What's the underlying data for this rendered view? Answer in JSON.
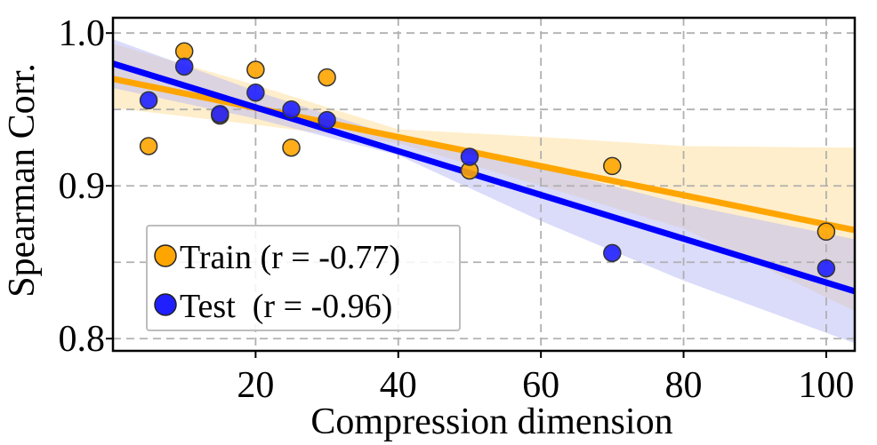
{
  "chart_data": {
    "type": "scatter",
    "xlabel": "Compression dimension",
    "ylabel": "Spearman Corr.",
    "xlim": [
      0,
      104
    ],
    "ylim": [
      0.792,
      1.01
    ],
    "x_ticks": [
      20,
      40,
      60,
      80,
      100
    ],
    "y_ticks": [
      0.8,
      0.9,
      1.0
    ],
    "x_tick_labels": [
      "20",
      "40",
      "60",
      "80",
      "100"
    ],
    "y_tick_labels": [
      "0.8",
      "0.9",
      "1.0"
    ],
    "grid": true,
    "legend_position": "bottom-left",
    "series": [
      {
        "name": "Train",
        "legend_label": "Train (r = -0.77)",
        "color": "#FFA500",
        "band_color": "#FFE0A0",
        "points": [
          {
            "x": 5,
            "y": 0.926
          },
          {
            "x": 10,
            "y": 0.988
          },
          {
            "x": 15,
            "y": 0.946
          },
          {
            "x": 20,
            "y": 0.976
          },
          {
            "x": 25,
            "y": 0.925
          },
          {
            "x": 30,
            "y": 0.971
          },
          {
            "x": 50,
            "y": 0.91
          },
          {
            "x": 70,
            "y": 0.913
          },
          {
            "x": 100,
            "y": 0.87
          }
        ],
        "fit": {
          "x": [
            0,
            104
          ],
          "y": [
            0.97,
            0.871
          ]
        },
        "ci": {
          "x": [
            0,
            20,
            40,
            60,
            80,
            104
          ],
          "lower": [
            0.951,
            0.94,
            0.928,
            0.9,
            0.872,
            0.818
          ],
          "upper": [
            0.993,
            0.966,
            0.937,
            0.932,
            0.926,
            0.925
          ]
        }
      },
      {
        "name": "Test",
        "legend_label": "Test  (r = -0.96)",
        "color": "#0000FF",
        "band_color": "#B8B8F5",
        "points": [
          {
            "x": 5,
            "y": 0.956
          },
          {
            "x": 10,
            "y": 0.978
          },
          {
            "x": 15,
            "y": 0.947
          },
          {
            "x": 20,
            "y": 0.961
          },
          {
            "x": 25,
            "y": 0.95
          },
          {
            "x": 30,
            "y": 0.943
          },
          {
            "x": 50,
            "y": 0.919
          },
          {
            "x": 70,
            "y": 0.856
          },
          {
            "x": 100,
            "y": 0.846
          }
        ],
        "fit": {
          "x": [
            0,
            104
          ],
          "y": [
            0.98,
            0.831
          ]
        },
        "ci": {
          "x": [
            0,
            20,
            40,
            60,
            80,
            104
          ],
          "lower": [
            0.964,
            0.944,
            0.92,
            0.877,
            0.838,
            0.797
          ],
          "upper": [
            0.996,
            0.962,
            0.932,
            0.912,
            0.888,
            0.865
          ]
        }
      }
    ]
  },
  "colors": {
    "train_marker": "#FFA500",
    "test_marker": "#1F1FFF",
    "marker_edge": "#333333",
    "frame": "#000000"
  }
}
